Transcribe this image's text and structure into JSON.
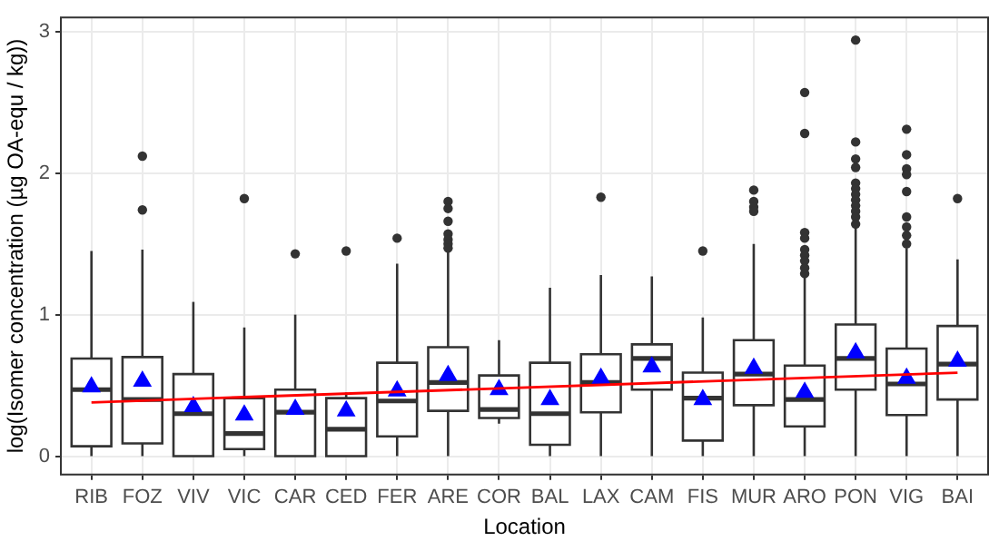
{
  "chart_data": {
    "type": "box",
    "xlabel": "Location",
    "ylabel": "log(Isomer concentration (µg OA-equ / kg))",
    "categories": [
      "RIB",
      "FOZ",
      "VIV",
      "VIC",
      "CAR",
      "CED",
      "FER",
      "ARE",
      "COR",
      "BAL",
      "LAX",
      "CAM",
      "FIS",
      "MUR",
      "ARO",
      "PON",
      "VIG",
      "BAI"
    ],
    "boxes": [
      {
        "low": 0,
        "q1": 0.07,
        "median": 0.47,
        "q3": 0.69,
        "high": 1.45,
        "mean": 0.49
      },
      {
        "low": 0,
        "q1": 0.09,
        "median": 0.4,
        "q3": 0.7,
        "high": 1.46,
        "mean": 0.53,
        "outliers": [
          2.12,
          1.74
        ]
      },
      {
        "low": 0,
        "q1": 0,
        "median": 0.3,
        "q3": 0.58,
        "high": 1.09,
        "mean": 0.35
      },
      {
        "low": 0,
        "q1": 0.05,
        "median": 0.16,
        "q3": 0.41,
        "high": 0.91,
        "mean": 0.29,
        "outliers": [
          1.82
        ]
      },
      {
        "low": 0,
        "q1": 0,
        "median": 0.31,
        "q3": 0.47,
        "high": 1.0,
        "mean": 0.33,
        "outliers": [
          1.43
        ]
      },
      {
        "low": 0,
        "q1": 0,
        "median": 0.19,
        "q3": 0.41,
        "high": 0.45,
        "mean": 0.32,
        "outliers": [
          1.45
        ]
      },
      {
        "low": 0,
        "q1": 0.14,
        "median": 0.39,
        "q3": 0.66,
        "high": 1.36,
        "mean": 0.46,
        "outliers": [
          1.54
        ]
      },
      {
        "low": 0,
        "q1": 0.32,
        "median": 0.52,
        "q3": 0.77,
        "high": 1.46,
        "mean": 0.57,
        "outliers": [
          1.8,
          1.75,
          1.66,
          1.57,
          1.53,
          1.5,
          1.47
        ]
      },
      {
        "low": 0.23,
        "q1": 0.27,
        "median": 0.33,
        "q3": 0.57,
        "high": 0.82,
        "mean": 0.47
      },
      {
        "low": 0,
        "q1": 0.08,
        "median": 0.3,
        "q3": 0.66,
        "high": 1.19,
        "mean": 0.4
      },
      {
        "low": 0,
        "q1": 0.31,
        "median": 0.52,
        "q3": 0.72,
        "high": 1.28,
        "mean": 0.55,
        "outliers": [
          1.83
        ]
      },
      {
        "low": 0,
        "q1": 0.47,
        "median": 0.69,
        "q3": 0.79,
        "high": 1.27,
        "mean": 0.63
      },
      {
        "low": 0,
        "q1": 0.11,
        "median": 0.41,
        "q3": 0.59,
        "high": 0.98,
        "mean": 0.4,
        "outliers": [
          1.45
        ]
      },
      {
        "low": 0,
        "q1": 0.36,
        "median": 0.58,
        "q3": 0.82,
        "high": 1.5,
        "mean": 0.62,
        "outliers": [
          1.88,
          1.8,
          1.76,
          1.73
        ]
      },
      {
        "low": 0,
        "q1": 0.21,
        "median": 0.4,
        "q3": 0.64,
        "high": 1.26,
        "mean": 0.45,
        "outliers": [
          2.57,
          2.28,
          1.58,
          1.54,
          1.46,
          1.42,
          1.38,
          1.33,
          1.29
        ]
      },
      {
        "low": 0,
        "q1": 0.47,
        "median": 0.69,
        "q3": 0.93,
        "high": 1.62,
        "mean": 0.73,
        "outliers": [
          2.94,
          2.22,
          2.1,
          2.04,
          1.93,
          1.89,
          1.85,
          1.81,
          1.77,
          1.73,
          1.69,
          1.64
        ]
      },
      {
        "low": 0,
        "q1": 0.29,
        "median": 0.51,
        "q3": 0.76,
        "high": 1.47,
        "mean": 0.55,
        "outliers": [
          2.31,
          2.13,
          2.03,
          1.99,
          1.87,
          1.69,
          1.62,
          1.56,
          1.5
        ]
      },
      {
        "low": 0,
        "q1": 0.4,
        "median": 0.65,
        "q3": 0.92,
        "high": 1.39,
        "mean": 0.67,
        "outliers": [
          1.82
        ]
      }
    ],
    "series": [
      {
        "type": "line",
        "x": [
          "RIB",
          "BAI"
        ],
        "values": [
          0.38,
          0.59
        ],
        "color": "#ff0000"
      }
    ],
    "ylim": [
      -0.13,
      3.1
    ],
    "yticks": [
      0,
      1,
      2,
      3
    ],
    "grid": true,
    "legend": false
  }
}
